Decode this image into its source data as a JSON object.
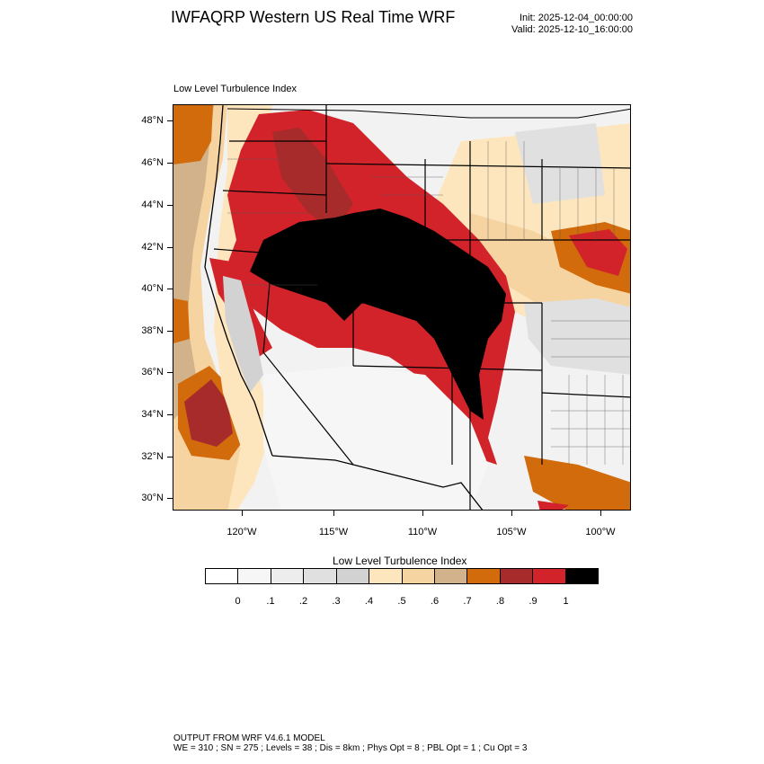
{
  "header": {
    "title": "IWFAQRP Western US Real Time WRF",
    "init": "Init: 2025-12-04_00:00:00",
    "valid": "Valid: 2025-12-10_16:00:00"
  },
  "panel": {
    "title": "Low Level Turbulence Index"
  },
  "map": {
    "lat_labels": [
      "48°N",
      "46°N",
      "44°N",
      "42°N",
      "40°N",
      "38°N",
      "36°N",
      "34°N",
      "32°N",
      "30°N"
    ],
    "lon_labels": [
      "120°W",
      "115°W",
      "110°W",
      "105°W",
      "100°W"
    ],
    "fields": [
      {
        "name": "northwest-core",
        "level": "0.9",
        "color": "#d22b2b"
      },
      {
        "name": "plateau-max",
        "level": "1",
        "color": "#000000"
      },
      {
        "name": "pacific-offshore",
        "level": "0.7",
        "color": "#c8a37e"
      },
      {
        "name": "plains-band",
        "level": "0.5",
        "color": "#f5d9a8"
      }
    ]
  },
  "colorbar": {
    "title": "Low Level Turbulence Index",
    "colors": [
      "#ffffff",
      "#f6f6f6",
      "#ededed",
      "#e0e0e0",
      "#d2d2d2",
      "#fde6bd",
      "#f6d4a2",
      "#d2b28a",
      "#d26b0c",
      "#a72b2b",
      "#d2232a",
      "#000000"
    ],
    "labels": [
      "0",
      ".1",
      ".2",
      ".3",
      ".4",
      ".5",
      ".6",
      ".7",
      ".8",
      ".9",
      "1"
    ]
  },
  "footer": {
    "line1": "OUTPUT FROM WRF V4.6.1 MODEL",
    "line2": "WE = 310 ; SN = 275 ; Levels = 38 ; Dis = 8km ; Phys Opt = 8 ; PBL Opt = 1 ; Cu Opt = 3"
  }
}
